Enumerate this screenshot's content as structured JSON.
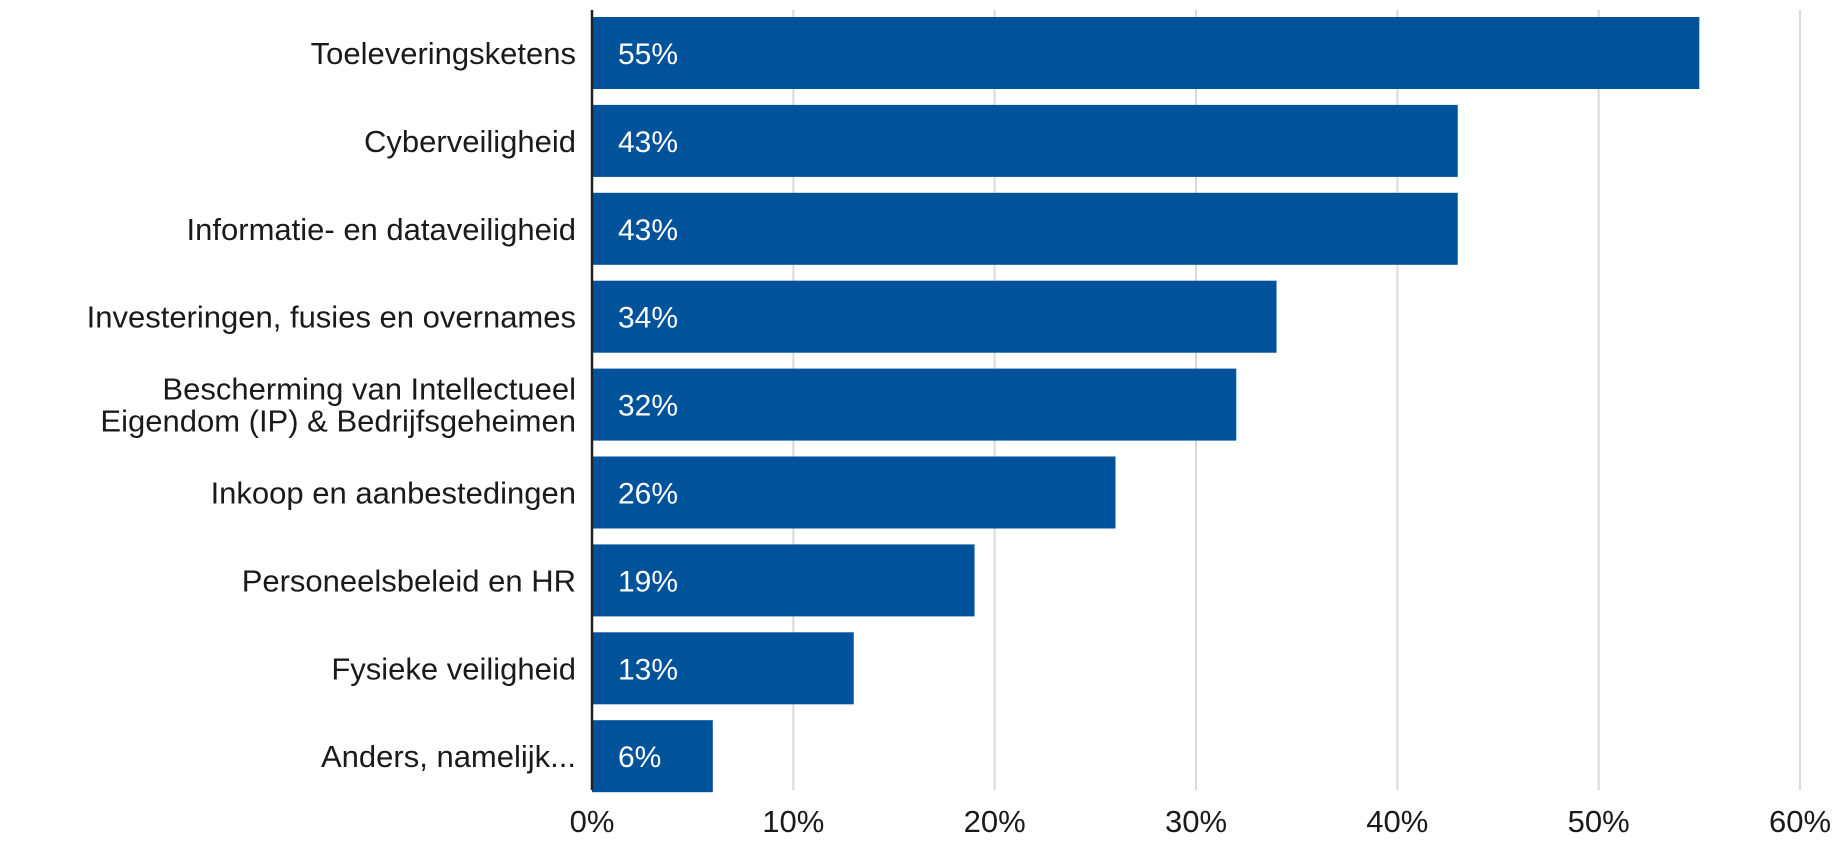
{
  "chart_data": {
    "type": "bar",
    "orientation": "horizontal",
    "categories": [
      [
        "Toeleveringsketens"
      ],
      [
        "Cyberveiligheid"
      ],
      [
        "Informatie- en dataveiligheid"
      ],
      [
        "Investeringen, fusies en overnames"
      ],
      [
        "Bescherming van Intellectueel",
        "Eigendom (IP) & Bedrijfsgeheimen"
      ],
      [
        "Inkoop en aanbestedingen"
      ],
      [
        "Personeelsbeleid en HR"
      ],
      [
        "Fysieke veiligheid"
      ],
      [
        "Anders, namelijk..."
      ]
    ],
    "values": [
      55,
      43,
      43,
      34,
      32,
      26,
      19,
      13,
      6
    ],
    "data_labels": [
      "55%",
      "43%",
      "43%",
      "34%",
      "32%",
      "26%",
      "19%",
      "13%",
      "6%"
    ],
    "xlim": [
      0,
      60
    ],
    "x_ticks": [
      0,
      10,
      20,
      30,
      40,
      50,
      60
    ],
    "x_tick_labels": [
      "0%",
      "10%",
      "20%",
      "30%",
      "40%",
      "50%",
      "60%"
    ],
    "grid": "vertical",
    "legend": "none",
    "colors": {
      "bar": "#00529b",
      "grid": "#d9d9d9",
      "axis": "#222222",
      "label_text": "#1a1a1a",
      "data_label_text": "#ffffff"
    }
  }
}
